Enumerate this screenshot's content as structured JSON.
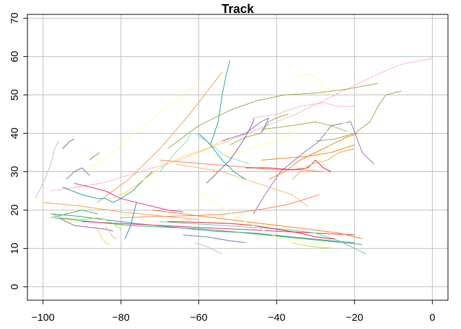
{
  "chart_data": {
    "type": "line",
    "title": "Track",
    "xlabel": "",
    "ylabel": "",
    "xlim": [
      -104,
      4
    ],
    "ylim": [
      -3.5,
      71
    ],
    "x_ticks": [
      -100,
      -80,
      -60,
      -40,
      -20,
      0
    ],
    "x_tick_labels": [
      "−100",
      "−80",
      "−60",
      "−40",
      "−20",
      "0"
    ],
    "y_ticks": [
      0,
      10,
      20,
      30,
      40,
      50,
      60,
      70
    ],
    "y_tick_labels": [
      "0",
      "10",
      "20",
      "30",
      "40",
      "50",
      "60",
      "70"
    ],
    "grid": true,
    "grid_color": "#BEBEBE",
    "axis_color": "#000000",
    "series": [
      {
        "color": "#FFB6C1",
        "x": [
          -98,
          -85,
          -75,
          -65,
          -55,
          -45,
          -35,
          -25,
          -15,
          -8,
          0
        ],
        "y": [
          25,
          27,
          30,
          33,
          37,
          41,
          45,
          50,
          55,
          58,
          59.5
        ]
      },
      {
        "color": "#8DB042",
        "x": [
          -68,
          -60,
          -52,
          -45,
          -38,
          -30,
          -22,
          -14
        ],
        "y": [
          36,
          42,
          46,
          48.5,
          50,
          50.5,
          51.5,
          53
        ]
      },
      {
        "color": "#8DB042",
        "x": [
          -30,
          -25,
          -20,
          -16,
          -14,
          -12,
          -8
        ],
        "y": [
          38,
          38.5,
          40,
          43,
          47,
          50,
          51
        ]
      },
      {
        "color": "#FFFF99",
        "x": [
          -90,
          -82,
          -74,
          -68,
          -63,
          -59
        ],
        "y": [
          30,
          35,
          42,
          47,
          51,
          53
        ]
      },
      {
        "color": "#F5A040",
        "x": [
          -86,
          -78,
          -70,
          -64,
          -60,
          -57,
          -54
        ],
        "y": [
          22,
          28,
          36,
          43,
          48,
          52,
          56
        ]
      },
      {
        "color": "#1FA0A0",
        "x": [
          -57,
          -55,
          -54,
          -53,
          -52
        ],
        "y": [
          37,
          43,
          50,
          55,
          59
        ]
      },
      {
        "color": "#8B6FC4",
        "x": [
          -46,
          -43,
          -39,
          -33,
          -29,
          -26,
          -21,
          -18,
          -15
        ],
        "y": [
          19,
          24,
          30,
          35,
          38,
          42,
          43,
          35,
          32
        ]
      },
      {
        "color": "#FF7F50",
        "x": [
          -80,
          -74,
          -67,
          -60,
          -53,
          -45,
          -37,
          -29
        ],
        "y": [
          18,
          18.2,
          18.4,
          18.6,
          19,
          20,
          21.5,
          24
        ]
      },
      {
        "color": "#1FA0A0",
        "x": [
          -98,
          -92,
          -84,
          -76,
          -66,
          -56,
          -46,
          -36,
          -26,
          -20
        ],
        "y": [
          19,
          18.5,
          17.5,
          16.5,
          15.5,
          14.5,
          14,
          13,
          12,
          11.5
        ]
      },
      {
        "color": "#4DAF4A",
        "x": [
          -97,
          -88,
          -78,
          -68,
          -58,
          -48,
          -38,
          -28,
          -18
        ],
        "y": [
          18,
          17,
          16,
          15.5,
          15,
          14,
          13,
          12,
          11
        ]
      },
      {
        "color": "#E7298A",
        "x": [
          -90,
          -80,
          -70,
          -60,
          -50,
          -40,
          -30,
          -20
        ],
        "y": [
          17,
          16.5,
          16,
          15.5,
          15,
          14.5,
          14,
          13.5
        ]
      },
      {
        "color": "#FF7F00",
        "x": [
          -72,
          -64,
          -56,
          -48,
          -40,
          -32,
          -24,
          -18
        ],
        "y": [
          20,
          19,
          18,
          17,
          16,
          15,
          14,
          12.5
        ]
      },
      {
        "color": "#66C2A5",
        "x": [
          -70,
          -62,
          -54,
          -46,
          -38,
          -30,
          -24,
          -17
        ],
        "y": [
          17,
          16.5,
          16,
          15.5,
          15,
          14,
          12,
          8.5
        ]
      },
      {
        "color": "#E41A1C",
        "x": [
          -68,
          -60,
          -52,
          -46,
          -40,
          -34,
          -30,
          -26,
          -25
        ],
        "y": [
          17,
          16.8,
          16.5,
          16,
          15,
          14,
          13,
          12.5,
          12.5
        ]
      },
      {
        "color": "#FFFF99",
        "x": [
          -60,
          -56,
          -50,
          -46,
          -40,
          -36,
          -30,
          -28,
          -25
        ],
        "y": [
          25,
          22,
          18,
          16,
          13,
          12,
          11,
          10.5,
          10
        ]
      },
      {
        "color": "#F5A040",
        "x": [
          -100,
          -90,
          -80,
          -70,
          -60
        ],
        "y": [
          22,
          21,
          19.5,
          18.5,
          17.5
        ]
      },
      {
        "color": "#A6D854",
        "x": [
          -98,
          -95,
          -90,
          -86,
          -84,
          -82,
          -80
        ],
        "y": [
          19,
          18,
          17.5,
          18,
          17.5,
          16.5,
          15
        ]
      },
      {
        "color": "#984EA3",
        "x": [
          -96,
          -92,
          -88,
          -84,
          -82
        ],
        "y": [
          18,
          16,
          15.5,
          15,
          14.5
        ]
      },
      {
        "color": "#FDB462",
        "x": [
          -84,
          -83,
          -82,
          -81
        ],
        "y": [
          16,
          14.5,
          13,
          12.5
        ]
      },
      {
        "color": "#FFD92F",
        "x": [
          -86,
          -85,
          -84,
          -83
        ],
        "y": [
          15,
          13,
          11.5,
          11
        ]
      },
      {
        "color": "#377EB8",
        "x": [
          -79,
          -78.5,
          -77.5,
          -76.5,
          -76
        ],
        "y": [
          12.5,
          13.5,
          16,
          20,
          22
        ]
      },
      {
        "color": "#7570B3",
        "x": [
          -64,
          -58,
          -52,
          -48
        ],
        "y": [
          13.5,
          13,
          12,
          11.5
        ]
      },
      {
        "color": "#BEBEBE",
        "x": [
          -61,
          -58,
          -56,
          -54
        ],
        "y": [
          11.5,
          10.5,
          9.5,
          8.5
        ]
      },
      {
        "color": "#B3DE69",
        "x": [
          -36,
          -34,
          -31,
          -28,
          -25
        ],
        "y": [
          11.5,
          11,
          10.5,
          10.2,
          10
        ]
      },
      {
        "color": "#1FA0A0",
        "x": [
          -95,
          -90,
          -86,
          -84,
          -82,
          -80,
          -77,
          -74,
          -72
        ],
        "y": [
          26,
          24,
          23,
          23,
          22,
          23,
          25,
          28,
          30
        ]
      },
      {
        "color": "#8DD3C7",
        "x": [
          -70,
          -66,
          -63,
          -62,
          -61,
          -58,
          -53,
          -47
        ],
        "y": [
          30,
          35,
          38,
          40,
          40,
          38,
          34,
          32
        ]
      },
      {
        "color": "#E7298A",
        "x": [
          -92,
          -88,
          -84,
          -80,
          -76,
          -72,
          -68,
          -64
        ],
        "y": [
          27,
          26,
          25,
          23,
          22,
          21,
          20,
          19.5
        ]
      },
      {
        "color": "#FF7F50",
        "x": [
          -70,
          -64,
          -58,
          -52,
          -46,
          -40,
          -34,
          -28
        ],
        "y": [
          33,
          32.5,
          32,
          31.5,
          31,
          30.5,
          30.5,
          30
        ]
      },
      {
        "color": "#FFFF99",
        "x": [
          -56,
          -50,
          -44,
          -40,
          -36,
          -34
        ],
        "y": [
          34,
          35,
          37,
          38,
          40,
          42
        ]
      },
      {
        "color": "#FF7F00",
        "x": [
          -44,
          -38,
          -32,
          -26,
          -20
        ],
        "y": [
          33,
          33.5,
          34,
          35,
          37
        ]
      },
      {
        "color": "#8DB042",
        "x": [
          -52,
          -48,
          -44,
          -42,
          -40,
          -37
        ],
        "y": [
          37,
          39,
          40,
          43,
          44,
          45
        ]
      },
      {
        "color": "#984EA3",
        "x": [
          -58,
          -52,
          -48,
          -46,
          -46
        ],
        "y": [
          27,
          33,
          39,
          43,
          44
        ]
      },
      {
        "color": "#FFB6C1",
        "x": [
          -46,
          -40,
          -34,
          -28,
          -24,
          -20
        ],
        "y": [
          44,
          45,
          47,
          48,
          47,
          47
        ]
      },
      {
        "color": "#FFFF99",
        "x": [
          -36,
          -32,
          -30,
          -28,
          -26
        ],
        "y": [
          55,
          55.5,
          55,
          52,
          50
        ]
      },
      {
        "color": "#FF7F00",
        "x": [
          -42,
          -38,
          -34,
          -30,
          -26,
          -22,
          -19
        ],
        "y": [
          28,
          30,
          33,
          35,
          37,
          39,
          40
        ]
      },
      {
        "color": "#E41A1C",
        "x": [
          -48,
          -42,
          -36,
          -32,
          -30,
          -28,
          -26
        ],
        "y": [
          31,
          31,
          30.5,
          31,
          33,
          31,
          30
        ]
      },
      {
        "color": "#BEBEBE",
        "x": [
          -102,
          -100,
          -98,
          -97,
          -96
        ],
        "y": [
          23,
          27,
          32,
          36,
          38
        ]
      },
      {
        "color": "#984EA3",
        "x": [
          -95,
          -93,
          -92
        ],
        "y": [
          36,
          38,
          38.5
        ]
      },
      {
        "color": "#7570B3",
        "x": [
          -94,
          -92,
          -90,
          -88
        ],
        "y": [
          28,
          30,
          31,
          29
        ]
      },
      {
        "color": "#A6761D",
        "x": [
          -88,
          -87,
          -86,
          -85.5
        ],
        "y": [
          33,
          34,
          34.5,
          35
        ]
      },
      {
        "color": "#4DAF4A",
        "x": [
          -98,
          -94,
          -90,
          -86
        ],
        "y": [
          18,
          19,
          20,
          19
        ]
      },
      {
        "color": "#FFD92F",
        "x": [
          -82,
          -78,
          -74,
          -70,
          -64,
          -58,
          -52
        ],
        "y": [
          23,
          25,
          28,
          31,
          34,
          36,
          39
        ]
      },
      {
        "color": "#8DB042",
        "x": [
          -44,
          -40,
          -36,
          -30,
          -26,
          -22
        ],
        "y": [
          41,
          41.5,
          42,
          43,
          42,
          40.5
        ]
      },
      {
        "color": "#FDB462",
        "x": [
          -66,
          -60,
          -54,
          -48,
          -42,
          -36,
          -32
        ],
        "y": [
          32,
          31,
          30,
          28,
          26,
          24,
          21
        ]
      },
      {
        "color": "#8B6FC4",
        "x": [
          -54,
          -48,
          -44,
          -42,
          -43,
          -44
        ],
        "y": [
          38,
          40,
          43,
          44,
          42,
          40
        ]
      },
      {
        "color": "#1FA0A0",
        "x": [
          -60,
          -57,
          -54,
          -51,
          -48
        ],
        "y": [
          40,
          37,
          33,
          30,
          28
        ]
      },
      {
        "color": "#F5A040",
        "x": [
          -36,
          -34,
          -31,
          -27,
          -24,
          -20
        ],
        "y": [
          28,
          30,
          32,
          33,
          35,
          36
        ]
      },
      {
        "color": "#FFFF99",
        "x": [
          -28,
          -26,
          -24,
          -22,
          -20,
          -18
        ],
        "y": [
          40,
          41,
          42,
          43,
          44,
          45
        ]
      }
    ]
  }
}
